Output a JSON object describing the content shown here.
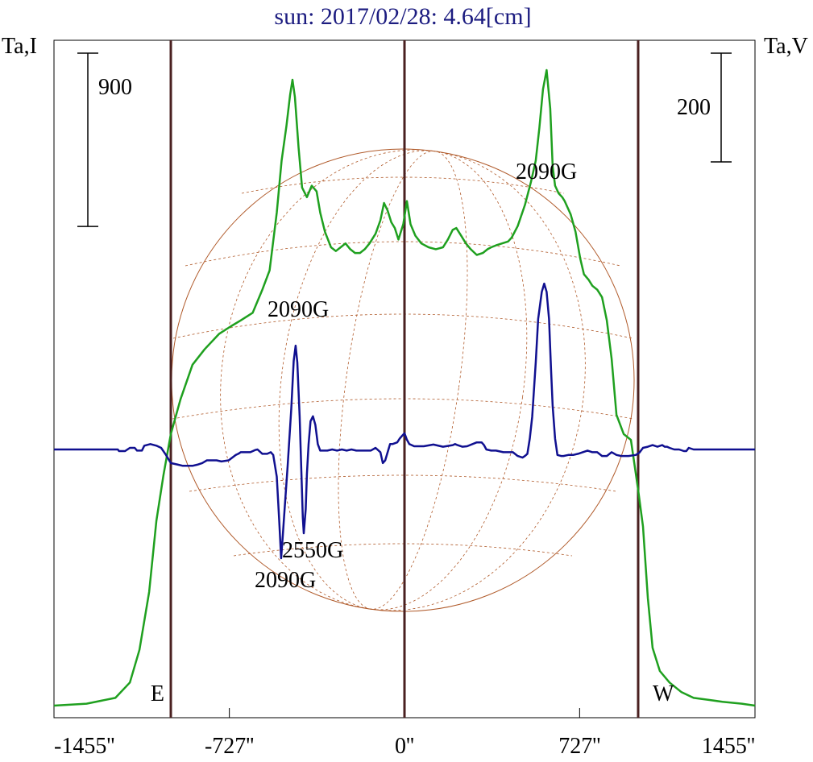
{
  "chart_data": {
    "type": "line",
    "title": "sun: 2017/02/28: 4.64[cm]",
    "y_left_label": "Ta,I",
    "y_right_label": "Ta,V",
    "x_unit": "arcsec",
    "x_range": [
      -1455,
      1455
    ],
    "x_ticks": [
      {
        "value": -1455,
        "label": "-1455''"
      },
      {
        "value": -727,
        "label": "-727''"
      },
      {
        "value": 0,
        "label": "0''"
      },
      {
        "value": 727,
        "label": "727''"
      },
      {
        "value": 1455,
        "label": "1455''"
      }
    ],
    "scale_bars": [
      {
        "axis": "left",
        "label": "900",
        "value": 900
      },
      {
        "axis": "right",
        "label": "200",
        "value": 200
      }
    ],
    "limb_markers": [
      {
        "label": "E",
        "x": -970
      },
      {
        "label": "W",
        "x": 970
      }
    ],
    "center_line_x": 0,
    "series": [
      {
        "key": "I",
        "color": "#1fa01f",
        "points": [
          [
            -1455,
            0
          ],
          [
            -1320,
            10
          ],
          [
            -1200,
            40
          ],
          [
            -1140,
            120
          ],
          [
            -1100,
            290
          ],
          [
            -1060,
            590
          ],
          [
            -1030,
            960
          ],
          [
            -1000,
            1200
          ],
          [
            -970,
            1410
          ],
          [
            -930,
            1590
          ],
          [
            -880,
            1770
          ],
          [
            -830,
            1850
          ],
          [
            -770,
            1930
          ],
          [
            -720,
            1970
          ],
          [
            -680,
            2000
          ],
          [
            -630,
            2040
          ],
          [
            -590,
            2160
          ],
          [
            -560,
            2260
          ],
          [
            -530,
            2560
          ],
          [
            -510,
            2830
          ],
          [
            -490,
            3010
          ],
          [
            -475,
            3170
          ],
          [
            -465,
            3250
          ],
          [
            -455,
            3160
          ],
          [
            -440,
            2900
          ],
          [
            -425,
            2690
          ],
          [
            -405,
            2640
          ],
          [
            -385,
            2700
          ],
          [
            -365,
            2670
          ],
          [
            -350,
            2560
          ],
          [
            -330,
            2460
          ],
          [
            -305,
            2380
          ],
          [
            -285,
            2360
          ],
          [
            -265,
            2380
          ],
          [
            -245,
            2400
          ],
          [
            -225,
            2370
          ],
          [
            -205,
            2350
          ],
          [
            -185,
            2350
          ],
          [
            -165,
            2370
          ],
          [
            -145,
            2400
          ],
          [
            -120,
            2450
          ],
          [
            -100,
            2520
          ],
          [
            -85,
            2610
          ],
          [
            -70,
            2570
          ],
          [
            -55,
            2510
          ],
          [
            -40,
            2480
          ],
          [
            -25,
            2420
          ],
          [
            -5,
            2500
          ],
          [
            10,
            2620
          ],
          [
            25,
            2500
          ],
          [
            45,
            2440
          ],
          [
            70,
            2400
          ],
          [
            100,
            2380
          ],
          [
            130,
            2370
          ],
          [
            160,
            2380
          ],
          [
            180,
            2420
          ],
          [
            200,
            2470
          ],
          [
            215,
            2480
          ],
          [
            235,
            2440
          ],
          [
            255,
            2400
          ],
          [
            275,
            2370
          ],
          [
            300,
            2340
          ],
          [
            325,
            2350
          ],
          [
            345,
            2370
          ],
          [
            360,
            2380
          ],
          [
            380,
            2390
          ],
          [
            405,
            2400
          ],
          [
            430,
            2410
          ],
          [
            445,
            2430
          ],
          [
            470,
            2490
          ],
          [
            500,
            2600
          ],
          [
            525,
            2720
          ],
          [
            545,
            2830
          ],
          [
            560,
            3000
          ],
          [
            575,
            3200
          ],
          [
            590,
            3300
          ],
          [
            605,
            3100
          ],
          [
            615,
            2800
          ],
          [
            625,
            2700
          ],
          [
            640,
            2660
          ],
          [
            655,
            2640
          ],
          [
            665,
            2620
          ],
          [
            690,
            2550
          ],
          [
            710,
            2460
          ],
          [
            730,
            2320
          ],
          [
            745,
            2240
          ],
          [
            765,
            2210
          ],
          [
            780,
            2180
          ],
          [
            800,
            2160
          ],
          [
            820,
            2120
          ],
          [
            840,
            2000
          ],
          [
            860,
            1800
          ],
          [
            880,
            1510
          ],
          [
            910,
            1410
          ],
          [
            940,
            1380
          ],
          [
            955,
            1250
          ],
          [
            970,
            1120
          ],
          [
            990,
            930
          ],
          [
            1010,
            560
          ],
          [
            1030,
            300
          ],
          [
            1060,
            180
          ],
          [
            1100,
            120
          ],
          [
            1150,
            70
          ],
          [
            1200,
            40
          ],
          [
            1260,
            30
          ],
          [
            1320,
            20
          ],
          [
            1400,
            10
          ],
          [
            1455,
            0
          ]
        ]
      },
      {
        "key": "V",
        "color": "#101090",
        "points": [
          [
            -1455,
            0
          ],
          [
            -1190,
            0
          ],
          [
            -1185,
            -3
          ],
          [
            -1160,
            -3
          ],
          [
            -1140,
            3
          ],
          [
            -1120,
            3
          ],
          [
            -1110,
            -2
          ],
          [
            -1090,
            -2
          ],
          [
            -1080,
            7
          ],
          [
            -1055,
            10
          ],
          [
            -1030,
            7
          ],
          [
            -1010,
            3
          ],
          [
            -990,
            -10
          ],
          [
            -970,
            -25
          ],
          [
            -940,
            -28
          ],
          [
            -920,
            -30
          ],
          [
            -900,
            -30
          ],
          [
            -880,
            -30
          ],
          [
            -860,
            -28
          ],
          [
            -840,
            -25
          ],
          [
            -820,
            -20
          ],
          [
            -800,
            -20
          ],
          [
            -780,
            -20
          ],
          [
            -760,
            -22
          ],
          [
            -730,
            -20
          ],
          [
            -700,
            -10
          ],
          [
            -690,
            -8
          ],
          [
            -680,
            -5
          ],
          [
            -660,
            -5
          ],
          [
            -640,
            -5
          ],
          [
            -620,
            -1
          ],
          [
            -610,
            0
          ],
          [
            -590,
            -8
          ],
          [
            -570,
            -8
          ],
          [
            -555,
            -5
          ],
          [
            -545,
            -10
          ],
          [
            -530,
            -50
          ],
          [
            -520,
            -130
          ],
          [
            -512,
            -200
          ],
          [
            -505,
            -158
          ],
          [
            -500,
            -125
          ],
          [
            -485,
            -30
          ],
          [
            -470,
            75
          ],
          [
            -460,
            163
          ],
          [
            -452,
            191
          ],
          [
            -445,
            160
          ],
          [
            -435,
            60
          ],
          [
            -428,
            -40
          ],
          [
            -422,
            -125
          ],
          [
            -418,
            -154
          ],
          [
            -410,
            -110
          ],
          [
            -405,
            -45
          ],
          [
            -398,
            10
          ],
          [
            -390,
            52
          ],
          [
            -380,
            61
          ],
          [
            -370,
            45
          ],
          [
            -360,
            10
          ],
          [
            -350,
            -2
          ],
          [
            -340,
            -2
          ],
          [
            -320,
            -2
          ],
          [
            -300,
            0
          ],
          [
            -280,
            -2
          ],
          [
            -260,
            0
          ],
          [
            -240,
            -2
          ],
          [
            -220,
            0
          ],
          [
            -200,
            -2
          ],
          [
            -180,
            -2
          ],
          [
            -160,
            -2
          ],
          [
            -140,
            -2
          ],
          [
            -120,
            3
          ],
          [
            -100,
            -5
          ],
          [
            -90,
            -25
          ],
          [
            -80,
            -20
          ],
          [
            -70,
            -5
          ],
          [
            -60,
            10
          ],
          [
            -50,
            10
          ],
          [
            -30,
            13
          ],
          [
            -20,
            20
          ],
          [
            -10,
            25
          ],
          [
            0,
            30
          ],
          [
            10,
            18
          ],
          [
            20,
            10
          ],
          [
            40,
            6
          ],
          [
            80,
            6
          ],
          [
            120,
            9
          ],
          [
            160,
            5
          ],
          [
            200,
            8
          ],
          [
            210,
            10
          ],
          [
            220,
            8
          ],
          [
            240,
            5
          ],
          [
            260,
            6
          ],
          [
            300,
            13
          ],
          [
            320,
            13
          ],
          [
            330,
            8
          ],
          [
            340,
            0
          ],
          [
            360,
            -2
          ],
          [
            380,
            -2
          ],
          [
            410,
            -5
          ],
          [
            450,
            -5
          ],
          [
            470,
            -12
          ],
          [
            490,
            -15
          ],
          [
            500,
            -12
          ],
          [
            510,
            -8
          ],
          [
            520,
            20
          ],
          [
            530,
            60
          ],
          [
            545,
            160
          ],
          [
            555,
            240
          ],
          [
            570,
            290
          ],
          [
            580,
            305
          ],
          [
            590,
            290
          ],
          [
            600,
            240
          ],
          [
            608,
            150
          ],
          [
            615,
            80
          ],
          [
            625,
            20
          ],
          [
            635,
            -10
          ],
          [
            650,
            -12
          ],
          [
            660,
            -12
          ],
          [
            680,
            -10
          ],
          [
            700,
            -10
          ],
          [
            720,
            -8
          ],
          [
            740,
            -5
          ],
          [
            760,
            -2
          ],
          [
            780,
            -5
          ],
          [
            800,
            -5
          ],
          [
            820,
            -12
          ],
          [
            840,
            -12
          ],
          [
            860,
            -5
          ],
          [
            880,
            -10
          ],
          [
            900,
            -12
          ],
          [
            930,
            -12
          ],
          [
            960,
            -10
          ],
          [
            975,
            -6
          ],
          [
            990,
            3
          ],
          [
            1010,
            5
          ],
          [
            1030,
            8
          ],
          [
            1050,
            5
          ],
          [
            1070,
            8
          ],
          [
            1080,
            5
          ],
          [
            1090,
            5
          ],
          [
            1100,
            3
          ],
          [
            1120,
            0
          ],
          [
            1140,
            0
          ],
          [
            1160,
            -3
          ],
          [
            1170,
            -3
          ],
          [
            1180,
            3
          ],
          [
            1200,
            0
          ],
          [
            1455,
            0
          ]
        ]
      }
    ],
    "annotations": [
      "2090G",
      "2090G",
      "2550G",
      "2090G"
    ],
    "grid": false
  }
}
